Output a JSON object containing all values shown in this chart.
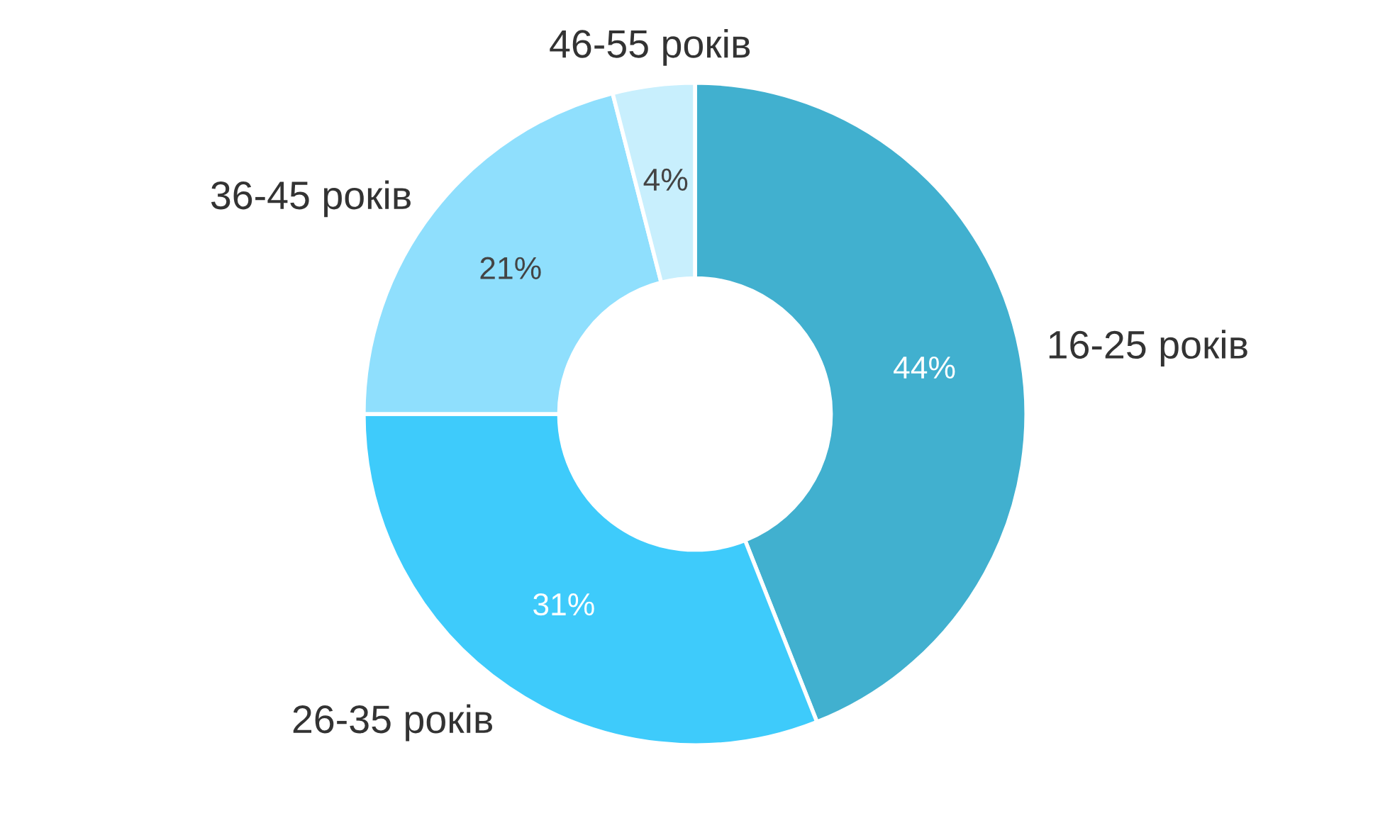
{
  "chart_data": {
    "type": "donut",
    "categories": [
      "16-25 років",
      "26-35 років",
      "36-45 років",
      "46-55 років"
    ],
    "values": [
      44,
      31,
      21,
      4
    ],
    "colors": [
      "#41b0cf",
      "#3ecbfb",
      "#8fdffd",
      "#c8effd"
    ],
    "value_labels": [
      "44%",
      "31%",
      "21%",
      "4%"
    ],
    "legend": false
  }
}
